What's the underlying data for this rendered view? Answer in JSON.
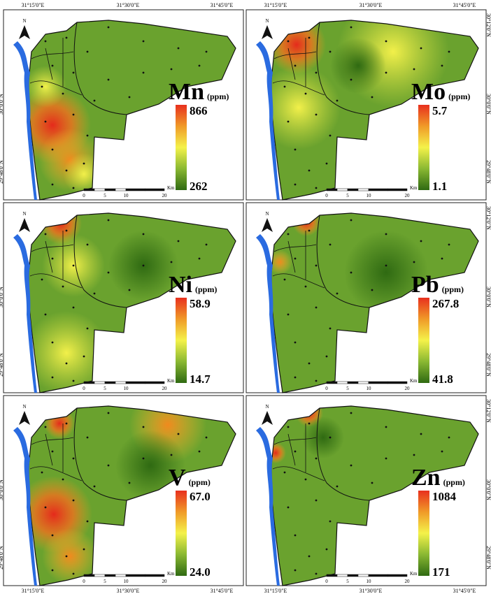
{
  "north_arrow": "N",
  "coordinates": {
    "longitude": [
      "31°15'0\"E",
      "31°30'0\"E",
      "31°45'0\"E"
    ],
    "latitude": [
      "30°12'0\"N",
      "30°0'0\"N",
      "29°48'0\"N"
    ]
  },
  "scale_bar": {
    "ticks": [
      "0",
      "5",
      "10",
      "20"
    ],
    "unit": "Km"
  },
  "panels": [
    {
      "element": "Mn",
      "unit": "(ppm)",
      "legend_max": "866",
      "legend_min": "262"
    },
    {
      "element": "Mo",
      "unit": "(ppm)",
      "legend_max": "5.7",
      "legend_min": "1.1"
    },
    {
      "element": "Ni",
      "unit": "(ppm)",
      "legend_max": "58.9",
      "legend_min": "14.7"
    },
    {
      "element": "Pb",
      "unit": "(ppm)",
      "legend_max": "267.8",
      "legend_min": "41.8"
    },
    {
      "element": "V",
      "unit": "(ppm)",
      "legend_max": "67.0",
      "legend_min": "24.0"
    },
    {
      "element": "Zn",
      "unit": "(ppm)",
      "legend_max": "1084",
      "legend_min": "171"
    }
  ]
}
